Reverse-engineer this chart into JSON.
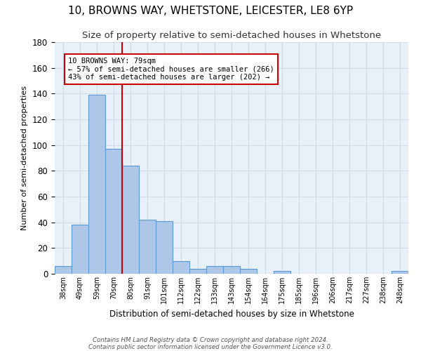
{
  "title": "10, BROWNS WAY, WHETSTONE, LEICESTER, LE8 6YP",
  "subtitle": "Size of property relative to semi-detached houses in Whetstone",
  "xlabel": "Distribution of semi-detached houses by size in Whetstone",
  "ylabel": "Number of semi-detached properties",
  "categories": [
    "38sqm",
    "49sqm",
    "59sqm",
    "70sqm",
    "80sqm",
    "91sqm",
    "101sqm",
    "112sqm",
    "122sqm",
    "133sqm",
    "143sqm",
    "154sqm",
    "164sqm",
    "175sqm",
    "185sqm",
    "196sqm",
    "206sqm",
    "217sqm",
    "227sqm",
    "238sqm",
    "248sqm"
  ],
  "values": [
    6,
    38,
    139,
    97,
    84,
    42,
    41,
    10,
    4,
    6,
    6,
    4,
    0,
    2,
    0,
    0,
    0,
    0,
    0,
    0,
    2
  ],
  "bar_color": "#aec6e8",
  "bar_edge_color": "#5a9bd5",
  "red_line_index": 4,
  "annotation_text": "10 BROWNS WAY: 79sqm\n← 57% of semi-detached houses are smaller (266)\n43% of semi-detached houses are larger (202) →",
  "annotation_box_color": "#ffffff",
  "annotation_box_edge": "#cc0000",
  "red_line_color": "#cc0000",
  "grid_color": "#d0dce8",
  "background_color": "#e8f0f8",
  "footer_line1": "Contains HM Land Registry data © Crown copyright and database right 2024.",
  "footer_line2": "Contains public sector information licensed under the Government Licence v3.0.",
  "ylim": [
    0,
    180
  ],
  "title_fontsize": 11,
  "subtitle_fontsize": 9.5
}
